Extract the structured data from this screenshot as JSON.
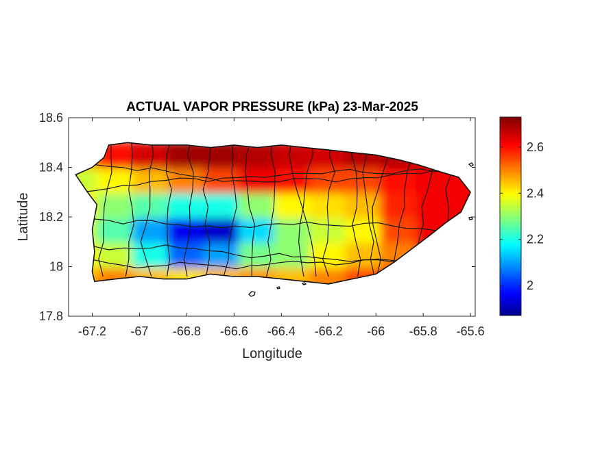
{
  "chart_data": {
    "type": "heatmap",
    "title": "ACTUAL VAPOR PRESSURE (kPa) 23-Mar-2025",
    "xlabel": "Longitude",
    "ylabel": "Latitude",
    "xlim": [
      -67.3,
      -65.58
    ],
    "ylim": [
      17.8,
      18.6
    ],
    "x_ticks": [
      -67.2,
      -67,
      -66.8,
      -66.6,
      -66.4,
      -66.2,
      -66,
      -65.8,
      -65.6
    ],
    "x_tick_labels": [
      "-67.2",
      "-67",
      "-66.8",
      "-66.6",
      "-66.4",
      "-66.2",
      "-66",
      "-65.8",
      "-65.6"
    ],
    "y_ticks": [
      17.8,
      18,
      18.2,
      18.4,
      18.6
    ],
    "y_tick_labels": [
      "17.8",
      "18",
      "18.2",
      "18.4",
      "18.6"
    ],
    "colorbar": {
      "colormap": "jet",
      "range": [
        1.87,
        2.73
      ],
      "ticks": [
        2,
        2.2,
        2.4,
        2.6
      ],
      "tick_labels": [
        "2",
        "2.2",
        "2.4",
        "2.6"
      ],
      "colors": [
        "#00008f",
        "#0000ff",
        "#00ffff",
        "#ffff00",
        "#ff0000",
        "#800000"
      ]
    },
    "grid": false,
    "outline": [
      [
        -67.27,
        18.37
      ],
      [
        -67.2,
        18.4
      ],
      [
        -67.15,
        18.44
      ],
      [
        -67.13,
        18.49
      ],
      [
        -67.05,
        18.5
      ],
      [
        -66.95,
        18.49
      ],
      [
        -66.8,
        18.49
      ],
      [
        -66.7,
        18.48
      ],
      [
        -66.6,
        18.49
      ],
      [
        -66.5,
        18.48
      ],
      [
        -66.4,
        18.49
      ],
      [
        -66.3,
        18.48
      ],
      [
        -66.2,
        18.47
      ],
      [
        -66.1,
        18.46
      ],
      [
        -66.0,
        18.45
      ],
      [
        -65.9,
        18.43
      ],
      [
        -65.82,
        18.41
      ],
      [
        -65.72,
        18.38
      ],
      [
        -65.65,
        18.36
      ],
      [
        -65.6,
        18.3
      ],
      [
        -65.64,
        18.22
      ],
      [
        -65.7,
        18.18
      ],
      [
        -65.78,
        18.12
      ],
      [
        -65.85,
        18.07
      ],
      [
        -65.92,
        18.02
      ],
      [
        -66.0,
        17.97
      ],
      [
        -66.1,
        17.95
      ],
      [
        -66.2,
        17.93
      ],
      [
        -66.3,
        17.94
      ],
      [
        -66.4,
        17.95
      ],
      [
        -66.5,
        17.96
      ],
      [
        -66.6,
        17.96
      ],
      [
        -66.7,
        17.97
      ],
      [
        -66.8,
        17.95
      ],
      [
        -66.9,
        17.95
      ],
      [
        -67.0,
        17.96
      ],
      [
        -67.1,
        17.95
      ],
      [
        -67.19,
        17.94
      ],
      [
        -67.2,
        17.98
      ],
      [
        -67.19,
        18.06
      ],
      [
        -67.2,
        18.15
      ],
      [
        -67.18,
        18.25
      ],
      [
        -67.22,
        18.3
      ]
    ],
    "field": {
      "lon": [
        -67.25,
        -67.1,
        -66.95,
        -66.8,
        -66.65,
        -66.5,
        -66.35,
        -66.2,
        -66.05,
        -65.9,
        -65.75,
        -65.6
      ],
      "lat": [
        17.95,
        18.05,
        18.15,
        18.25,
        18.35,
        18.45
      ],
      "values": [
        [
          2.45,
          2.5,
          2.45,
          2.42,
          2.45,
          2.48,
          2.45,
          2.5,
          2.55,
          2.55,
          2.6,
          2.6
        ],
        [
          2.4,
          2.35,
          2.2,
          2.05,
          2.1,
          2.28,
          2.3,
          2.4,
          2.45,
          2.5,
          2.6,
          2.62
        ],
        [
          2.35,
          2.25,
          2.1,
          1.95,
          1.92,
          2.15,
          2.3,
          2.35,
          2.4,
          2.55,
          2.62,
          2.62
        ],
        [
          2.4,
          2.3,
          2.25,
          2.2,
          2.2,
          2.3,
          2.4,
          2.42,
          2.45,
          2.58,
          2.62,
          2.62
        ],
        [
          2.35,
          2.4,
          2.45,
          2.5,
          2.55,
          2.62,
          2.6,
          2.55,
          2.55,
          2.6,
          2.62,
          2.62
        ],
        [
          2.45,
          2.6,
          2.65,
          2.7,
          2.7,
          2.68,
          2.66,
          2.65,
          2.68,
          2.68,
          2.65,
          2.62
        ]
      ]
    }
  }
}
